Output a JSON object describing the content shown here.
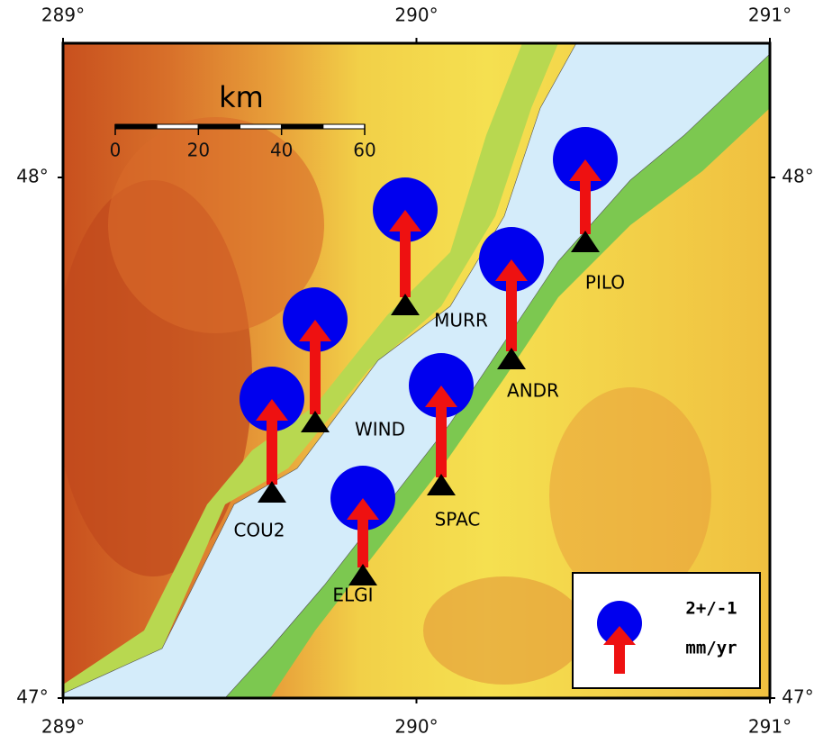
{
  "lon_ticks": [
    {
      "value": 289,
      "label": "289°"
    },
    {
      "value": 290,
      "label": "290°"
    },
    {
      "value": 291,
      "label": "291°"
    }
  ],
  "lat_ticks": [
    {
      "value": 47,
      "label": "47°"
    },
    {
      "value": 48,
      "label": "48°"
    }
  ],
  "scale_bar": {
    "title": "km",
    "ticks": [
      0,
      20,
      40,
      60
    ]
  },
  "stations": [
    "PILO",
    "MURR",
    "ANDR",
    "WIND",
    "SPAC",
    "COU2",
    "ELGI"
  ],
  "legend": {
    "magnitude": "2+/-1",
    "units": "mm/yr"
  }
}
